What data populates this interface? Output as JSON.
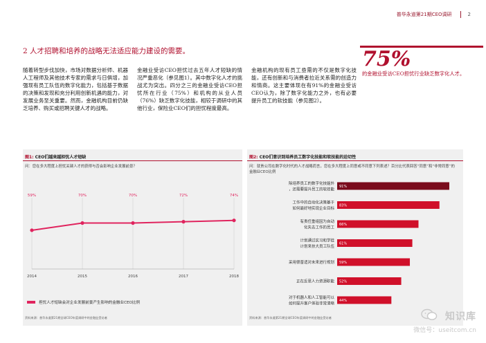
{
  "header": {
    "title": "普华永道第21期CEO调研",
    "page": "2"
  },
  "section": {
    "title": "2  人才招聘和培养的战略无法适应能力建设的需要。"
  },
  "stat": {
    "value": "75%",
    "caption": "的金融业受访CEO担忧行业缺乏数字化人才。"
  },
  "body": {
    "col1": "随着转型步伐加快，市场对数据分析师、机器人工程师及其他技术专家的需求与日俱增，加强现有员工队伍的数字化能力，包括基于数据的决策和发现和充分利用创新机遇的能力，对发展业务至关重要。然而，金融机构目前仍缺乏培养、购买或招聘关键人才的战略。",
    "col2": "金融业受访CEO担忧过去五年人才短缺的情况严重恶化（参见图1）。其中数字化人才的挑战尤为突出。四分之三的金融业受访CEO担忧所在行业（75%）和机构的从业人员（76%）缺乏数字化技能，相较于调研中的其他行业，保险业CEO们的担忧程度最高。",
    "col3": "金融机构的现有员工亟需的不仅是数字化技能，还有创新和与消费者拉近关系需的创造力和情商。这主要体现在有91%的金融业受访CEO认为，除了数字化能力之外，也有必要提升员工的软技能（参见图2）。"
  },
  "figure1": {
    "fig_label": "图1:",
    "title": "CEO们越来越担忧人才短缺",
    "question": "问：您在多大程度上担忧关键人才的获得与否会影响企业发展前景？",
    "legend": "担忧人才短缺会对企业发展前景产生影响的金融业CEO比例",
    "source": "资料来源：普华永道第21期全球CEO年度调研中的金融业受访者"
  },
  "figure2": {
    "fig_label": "图2:",
    "title": "CEO们意识到培养员工数字化技能和软技能的迫切性",
    "question": "问：就贵公司在数字化时代的人才战略而言，您在多大程度上同意或不同意下列表述？百分比代表回答“同意”和“非常同意”的金融业CEO比例",
    "source": "资料来源：普华永道第21期全球CEO年度调研中的金融业受访者"
  },
  "chart_data": [
    {
      "type": "line",
      "x": [
        "2014",
        "2015",
        "2016",
        "2017",
        "2018"
      ],
      "series": [
        {
          "name": "担忧人才短缺会对企业发展前景产生影响的金融业CEO比例",
          "values": [
            59,
            70,
            70,
            72,
            74
          ]
        }
      ],
      "value_labels": [
        "59%",
        "70%",
        "70%",
        "72%",
        "74%"
      ],
      "ylim": [
        0,
        100
      ],
      "grid": true,
      "color": "#e0245e"
    },
    {
      "type": "bar",
      "orientation": "horizontal",
      "categories": [
        "除培养员工的数字化技能外，还需要提升员工的软技能",
        "工作中的自动化决策基于如何最好地实现企业目标",
        "有责任重组因为自动化失去工作的员工",
        "计划通过实习和学徒计划来扶大员工队伍",
        "采用很普适对未来进行规划",
        "正在反思人力资源职能",
        "对于机器人和人工智能可以如何提升客户体验非常清晰"
      ],
      "values": [
        91,
        83,
        66,
        61,
        59,
        52,
        44
      ],
      "value_labels": [
        "91%",
        "83%",
        "66%",
        "61%",
        "59%",
        "52%",
        "44%"
      ],
      "xlim": [
        0,
        100
      ],
      "grid": false,
      "colors": [
        "#7a0b1c",
        "#d0102a",
        "#d0102a",
        "#d0102a",
        "#d0102a",
        "#d0102a",
        "#d0102a"
      ]
    }
  ],
  "watermark": {
    "name": "知识库",
    "sub": "微信号：useitcom.cn",
    "icon": "wechat-icon"
  }
}
